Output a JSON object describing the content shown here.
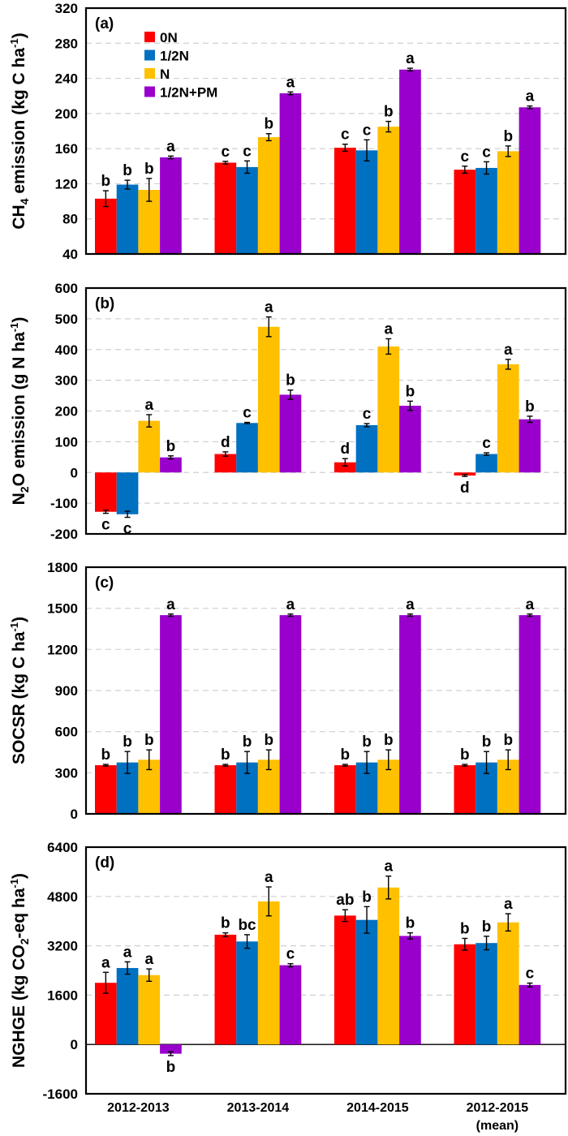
{
  "chart_data": [
    {
      "type": "bar",
      "panel_label": "(a)",
      "ylabel": "CH4 emission (kg C ha-1)",
      "ylabel_parts": {
        "pre": "CH",
        "sub": "4",
        "mid": " emission (kg C ha",
        "sup": "-1",
        "post": ")"
      },
      "ylim": [
        40,
        320
      ],
      "yticks": [
        40,
        80,
        120,
        160,
        200,
        240,
        280,
        320
      ],
      "grid": true,
      "legend": "top-left",
      "categories": [
        "2012-2013",
        "2013-2014",
        "2014-2015",
        "2012-2015 (mean)"
      ],
      "series": [
        {
          "name": "0N",
          "values": [
            103,
            144,
            161,
            136
          ],
          "errors": [
            9,
            1.5,
            4,
            4
          ],
          "letters": [
            "b",
            "c",
            "c",
            "c"
          ]
        },
        {
          "name": "1/2N",
          "values": [
            119,
            139,
            158,
            138
          ],
          "errors": [
            5,
            7,
            12,
            7
          ],
          "letters": [
            "b",
            "c",
            "c",
            "c"
          ]
        },
        {
          "name": "N",
          "values": [
            113,
            173,
            185,
            157
          ],
          "errors": [
            13,
            4,
            6,
            6
          ],
          "letters": [
            "b",
            "b",
            "b",
            "b"
          ]
        },
        {
          "name": "1/2N+PM",
          "values": [
            150,
            223,
            250,
            207
          ],
          "errors": [
            1.5,
            1.5,
            1.5,
            1.5
          ],
          "letters": [
            "a",
            "a",
            "a",
            "a"
          ]
        }
      ]
    },
    {
      "type": "bar",
      "panel_label": "(b)",
      "ylabel": "N2O emission (g N ha-1)",
      "ylabel_parts": {
        "pre": "N",
        "sub": "2",
        "mid": "O emission (g N ha",
        "sup": "-1",
        "post": ")"
      },
      "ylim": [
        -200,
        600
      ],
      "yticks": [
        -200,
        -100,
        0,
        100,
        200,
        300,
        400,
        500,
        600
      ],
      "grid": true,
      "categories": [
        "2012-2013",
        "2013-2014",
        "2014-2015",
        "2012-2015 (mean)"
      ],
      "series": [
        {
          "name": "0N",
          "values": [
            -128,
            60,
            33,
            -10
          ],
          "errors": [
            5,
            7,
            12,
            3
          ],
          "letters": [
            "c",
            "d",
            "d",
            "d"
          ]
        },
        {
          "name": "1/2N",
          "values": [
            -136,
            161,
            154,
            60
          ],
          "errors": [
            10,
            2,
            5,
            4
          ],
          "letters": [
            "c",
            "c",
            "c",
            "c"
          ]
        },
        {
          "name": "N",
          "values": [
            168,
            474,
            410,
            352
          ],
          "errors": [
            20,
            32,
            25,
            16
          ],
          "letters": [
            "a",
            "a",
            "a",
            "a"
          ]
        },
        {
          "name": "1/2N+PM",
          "values": [
            49,
            253,
            217,
            173
          ],
          "errors": [
            5,
            15,
            15,
            10
          ],
          "letters": [
            "b",
            "b",
            "b",
            "b"
          ]
        }
      ]
    },
    {
      "type": "bar",
      "panel_label": "(c)",
      "ylabel": "SOCSR (kg C ha-1)",
      "ylabel_parts": {
        "pre": "SOCSR (kg C ha",
        "sub": "",
        "mid": "",
        "sup": "-1",
        "post": ")"
      },
      "ylim": [
        0,
        1800
      ],
      "yticks": [
        0,
        300,
        600,
        900,
        1200,
        1500,
        1800
      ],
      "grid": true,
      "categories": [
        "2012-2013",
        "2013-2014",
        "2014-2015",
        "2012-2015 (mean)"
      ],
      "series": [
        {
          "name": "0N",
          "values": [
            355,
            355,
            355,
            355
          ],
          "errors": [
            6,
            6,
            6,
            6
          ],
          "letters": [
            "b",
            "b",
            "b",
            "b"
          ]
        },
        {
          "name": "1/2N",
          "values": [
            375,
            375,
            375,
            375
          ],
          "errors": [
            80,
            80,
            80,
            80
          ],
          "letters": [
            "b",
            "b",
            "b",
            "b"
          ]
        },
        {
          "name": "N",
          "values": [
            395,
            395,
            395,
            395
          ],
          "errors": [
            72,
            72,
            72,
            72
          ],
          "letters": [
            "b",
            "b",
            "b",
            "b"
          ]
        },
        {
          "name": "1/2N+PM",
          "values": [
            1450,
            1450,
            1450,
            1450
          ],
          "errors": [
            8,
            8,
            8,
            8
          ],
          "letters": [
            "a",
            "a",
            "a",
            "a"
          ]
        }
      ]
    },
    {
      "type": "bar",
      "panel_label": "(d)",
      "ylabel": "NGHGE (kg CO2-eq ha-1)",
      "ylabel_parts": {
        "pre": "NGHGE (kg CO",
        "sub": "2",
        "mid": "-eq ha",
        "sup": "-1",
        "post": ")"
      },
      "ylim": [
        -1600,
        6400
      ],
      "yticks": [
        -1600,
        0,
        1600,
        3200,
        4800,
        6400
      ],
      "grid": true,
      "categories": [
        "2012-2013",
        "2013-2014",
        "2014-2015",
        "2012-2015 (mean)"
      ],
      "xtick_lines": [
        [
          "2012-2013"
        ],
        [
          "2013-2014"
        ],
        [
          "2014-2015"
        ],
        [
          "2012-2015",
          "(mean)"
        ]
      ],
      "series": [
        {
          "name": "0N",
          "values": [
            2000,
            3560,
            4180,
            3250
          ],
          "errors": [
            340,
            60,
            190,
            190
          ],
          "letters": [
            "a",
            "b",
            "ab",
            "b"
          ]
        },
        {
          "name": "1/2N",
          "values": [
            2480,
            3340,
            4040,
            3290
          ],
          "errors": [
            200,
            220,
            430,
            220
          ],
          "letters": [
            "a",
            "bc",
            "b",
            "b"
          ]
        },
        {
          "name": "N",
          "values": [
            2250,
            4640,
            5090,
            3960
          ],
          "errors": [
            200,
            470,
            370,
            280
          ],
          "letters": [
            "a",
            "a",
            "a",
            "a"
          ]
        },
        {
          "name": "1/2N+PM",
          "values": [
            -300,
            2570,
            3520,
            1930
          ],
          "errors": [
            60,
            50,
            100,
            60
          ],
          "letters": [
            "b",
            "c",
            "b",
            "c"
          ]
        }
      ]
    }
  ],
  "legend": {
    "items": [
      {
        "label": "0N",
        "color": "#ff0000"
      },
      {
        "label": "1/2N",
        "color": "#0070c0"
      },
      {
        "label": "N",
        "color": "#ffc000"
      },
      {
        "label": "1/2N+PM",
        "color": "#9900cc"
      }
    ]
  },
  "colors": {
    "0N": "#ff0000",
    "1/2N": "#0070c0",
    "N": "#ffc000",
    "1/2N+PM": "#9900cc"
  }
}
